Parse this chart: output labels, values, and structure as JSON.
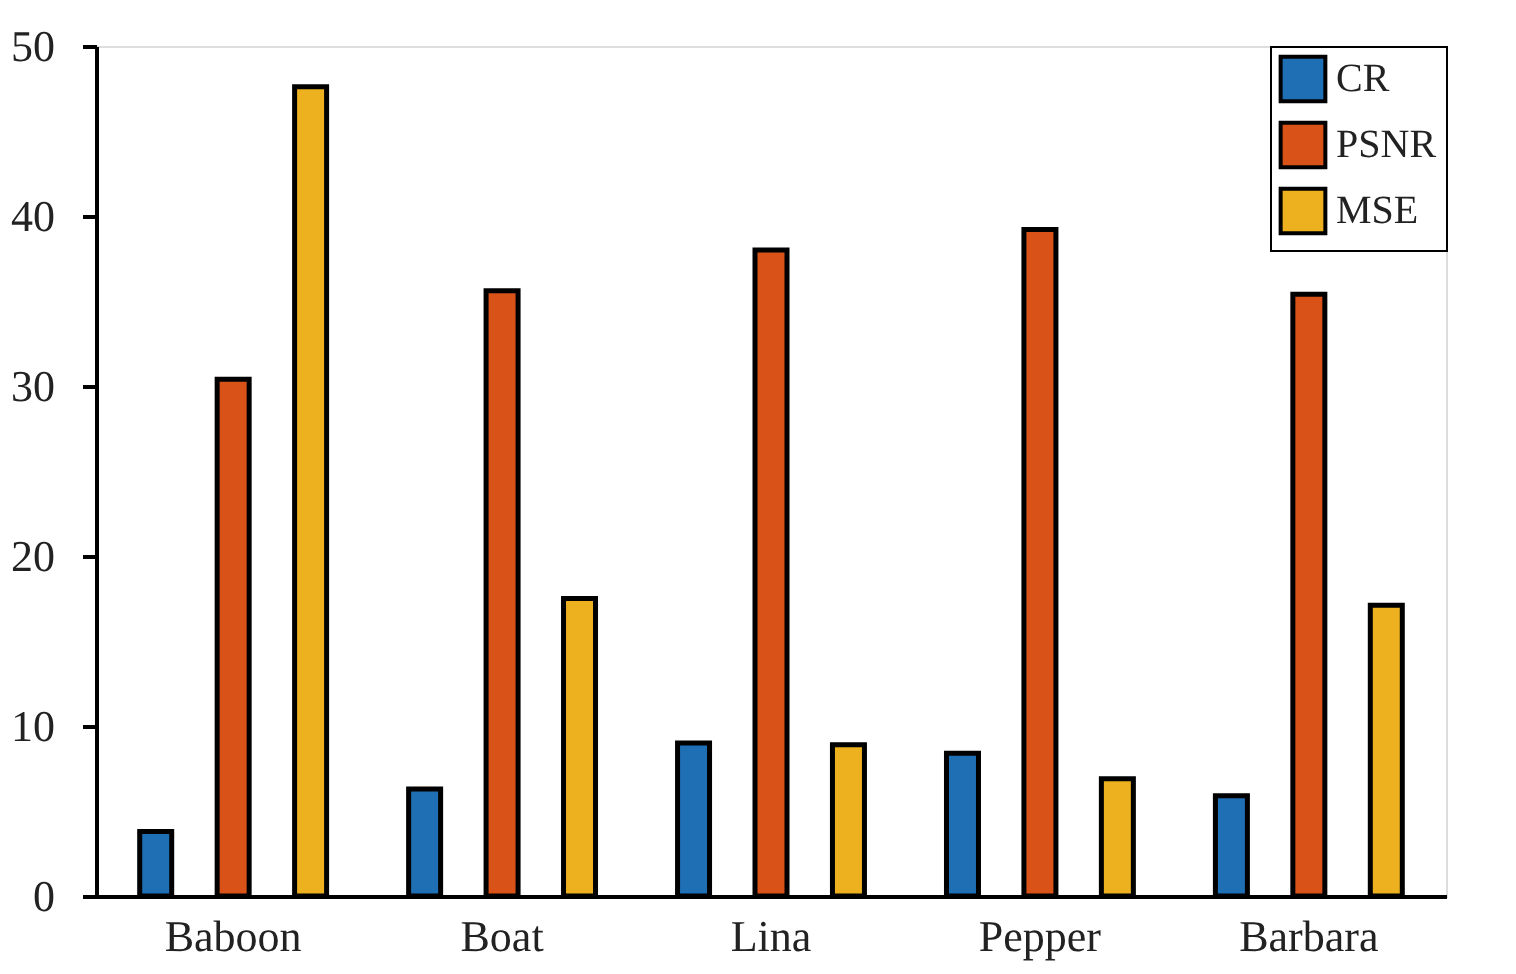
{
  "chart_data": {
    "type": "bar",
    "categories": [
      "Baboon",
      "Boat",
      "Lina",
      "Pepper",
      "Barbara"
    ],
    "series": [
      {
        "name": "CR",
        "color": "#1f6fb4",
        "values": [
          3.8,
          6.3,
          9.0,
          8.4,
          5.9
        ]
      },
      {
        "name": "PSNR",
        "color": "#d95319",
        "values": [
          30.4,
          35.6,
          38.0,
          39.2,
          35.4
        ]
      },
      {
        "name": "MSE",
        "color": "#edb120",
        "values": [
          47.6,
          17.5,
          8.9,
          6.9,
          17.1
        ]
      }
    ],
    "ylim": [
      0,
      50
    ],
    "yticks": [
      0,
      10,
      20,
      30,
      40,
      50
    ],
    "grid": false,
    "legend": "top right"
  }
}
